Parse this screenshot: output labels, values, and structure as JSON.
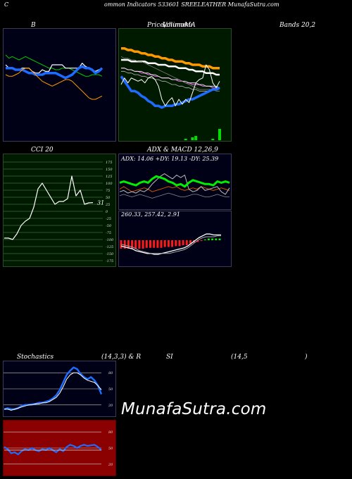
{
  "header": {
    "top_title": "ommon Indicators 533601 SREELEATHER MunafaSutra.com",
    "c_letter": "C"
  },
  "labels": {
    "bbands_title": "B",
    "price_title_1": "Price,",
    "price_title_2": "Volume",
    "price_title_3": "Ichimoku",
    "price_title_4": "MA",
    "bands_right": "Bands 20,2",
    "cci_title": "CCI 20",
    "adx_title": "ADX  & MACD 12,26,9",
    "adx_values": "ADX: 14.06  +DY: 19.13 -DY: 25.39",
    "macd_values": "260.33,  257.42,  2.91",
    "stoch_title_1": "Stochastics",
    "stoch_title_2": "(14,3,3) & R",
    "stoch_title_3": "SI",
    "stoch_title_4": "(14,5",
    "stoch_title_5": ")",
    "watermark": "MunafaSutra.com"
  },
  "colors": {
    "navy": "#000016",
    "green_panel": "#001a00",
    "red_panel": "#8b0000",
    "blue": "#1e6bff",
    "orange": "#ff9900",
    "green_line": "#00cc00",
    "white": "#ffffff"
  },
  "chart_data": [
    {
      "type": "line",
      "panel": "bollinger",
      "series": [
        {
          "values": [
            88,
            86,
            87,
            86,
            85,
            86,
            87,
            86,
            85,
            84,
            83,
            82,
            81,
            80,
            80,
            79,
            79,
            80,
            80,
            80,
            79,
            78,
            77,
            76,
            75,
            75,
            76,
            76,
            76,
            75
          ]
        },
        {
          "values": [
            82,
            80,
            80,
            79,
            79,
            80,
            80,
            80,
            78,
            77,
            77,
            79,
            78,
            78,
            82,
            82,
            82,
            82,
            80,
            80,
            80,
            80,
            80,
            83,
            81,
            80,
            79,
            78,
            79,
            80
          ]
        },
        {
          "values": [
            80,
            80,
            80,
            79,
            79,
            79,
            78,
            77,
            77,
            76,
            76,
            76,
            77,
            77,
            77,
            77,
            76,
            75,
            74,
            75,
            76,
            78,
            80,
            81,
            80,
            80,
            79,
            77,
            78,
            80
          ]
        },
        {
          "values": [
            76,
            75,
            75,
            76,
            77,
            79,
            80,
            80,
            78,
            76,
            74,
            72,
            71,
            70,
            69,
            70,
            71,
            72,
            73,
            73,
            72,
            70,
            68,
            66,
            64,
            62,
            61,
            61,
            62,
            63
          ]
        }
      ]
    },
    {
      "type": "line",
      "panel": "price_volume_ma",
      "series": [
        {
          "values": [
            92,
            92,
            91,
            91,
            90,
            90,
            89,
            89,
            88,
            88,
            87,
            87,
            86,
            86,
            85,
            85,
            84,
            84,
            84,
            83,
            83,
            82,
            82,
            82,
            81,
            81,
            81,
            80,
            80,
            80
          ]
        },
        {
          "values": [
            85,
            85,
            85,
            84,
            84,
            84,
            84,
            84,
            83,
            83,
            83,
            82,
            82,
            82,
            81,
            81,
            81,
            80,
            80,
            80,
            79,
            79,
            78,
            78,
            78,
            77,
            77,
            77,
            76,
            76
          ]
        },
        {
          "values": [
            80,
            80,
            79,
            79,
            78,
            78,
            77,
            77,
            76,
            76,
            75,
            75,
            74,
            74,
            74,
            73,
            73,
            72,
            72,
            71,
            71,
            70,
            70,
            70,
            69,
            69,
            69,
            68,
            68,
            68
          ]
        },
        {
          "values": [
            80,
            80,
            79,
            79,
            78,
            78,
            78,
            77,
            77,
            76,
            76,
            75,
            74,
            74,
            74,
            73,
            73,
            73,
            72,
            72,
            71,
            71,
            71,
            70,
            70,
            69,
            69,
            69,
            69,
            68
          ]
        },
        {
          "values": [
            78,
            78,
            77,
            77,
            76,
            76,
            75,
            75,
            74,
            74,
            73,
            73,
            72,
            72,
            71,
            70,
            70,
            69,
            69,
            68,
            68,
            67,
            67,
            66,
            66,
            66,
            66,
            67,
            67,
            68
          ]
        },
        {
          "values": [
            87,
            86,
            86,
            85,
            85,
            84,
            84,
            83,
            82,
            81,
            80,
            79,
            78,
            77,
            76,
            75,
            74,
            73,
            72,
            71,
            70,
            69,
            68,
            67,
            67,
            67,
            67,
            67,
            66,
            66
          ]
        },
        {
          "values": [
            75,
            72,
            69,
            66,
            66,
            65,
            63,
            62,
            60,
            59,
            57,
            57,
            56,
            57,
            57,
            57,
            58,
            58,
            59,
            60,
            61,
            61,
            62,
            63,
            64,
            65,
            66,
            67,
            67,
            68
          ]
        },
        {
          "values": [
            70,
            74,
            71,
            74,
            73,
            72,
            73,
            71,
            74,
            75,
            73,
            69,
            61,
            57,
            60,
            62,
            57,
            61,
            58,
            61,
            59,
            65,
            71,
            73,
            74,
            82,
            79,
            71,
            68,
            72
          ]
        }
      ],
      "volume": [
        0,
        0,
        0,
        0,
        0,
        0,
        0,
        0,
        0,
        0,
        0,
        0,
        0,
        0,
        0,
        0,
        0,
        0,
        0,
        1,
        0,
        2,
        3,
        0,
        0,
        0,
        0,
        1,
        0,
        8
      ]
    },
    {
      "type": "line",
      "panel": "cci",
      "ylim": [
        -175,
        175
      ],
      "yticks": [
        175,
        150,
        125,
        100,
        75,
        50,
        25,
        0,
        -25,
        -50,
        -75,
        -100,
        -125,
        -150,
        -175
      ],
      "last_label": "31",
      "values": [
        -95,
        -95,
        -100,
        -80,
        -50,
        -35,
        -25,
        15,
        80,
        100,
        75,
        50,
        25,
        35,
        35,
        45,
        125,
        55,
        75,
        25,
        30,
        31
      ]
    },
    {
      "type": "line",
      "panel": "adx",
      "series": [
        {
          "values": [
            15,
            16,
            15,
            14,
            15,
            16,
            15,
            14,
            13,
            14,
            15,
            16,
            17,
            16,
            15,
            14,
            14,
            15,
            16,
            16,
            15,
            14,
            14,
            15,
            16,
            15,
            14,
            14
          ]
        },
        {
          "values": [
            20,
            22,
            20,
            18,
            19,
            20,
            21,
            20,
            18,
            19,
            20,
            21,
            22,
            21,
            22,
            20,
            19,
            20,
            21,
            20,
            22,
            21,
            20,
            19,
            20,
            21,
            20,
            19
          ]
        },
        {
          "values": [
            18,
            19,
            17,
            18,
            17,
            19,
            18,
            20,
            24,
            27,
            30,
            32,
            30,
            28,
            31,
            29,
            31,
            20,
            18,
            19,
            22,
            19,
            20,
            21,
            22,
            18,
            16,
            21
          ]
        },
        {
          "values": [
            25,
            26,
            25,
            24,
            23,
            25,
            26,
            25,
            28,
            30,
            29,
            28,
            26,
            25,
            23,
            24,
            22,
            25,
            27,
            26,
            25,
            24,
            24,
            23,
            26,
            25,
            26,
            25
          ]
        }
      ]
    },
    {
      "type": "line",
      "panel": "macd",
      "values_label": "260.33,  257.42,  2.91",
      "series": [
        {
          "values": [
            80,
            79,
            78,
            77,
            75,
            74,
            73,
            72,
            72,
            71,
            71,
            72,
            73,
            74,
            75,
            76,
            77,
            78,
            80,
            83,
            86,
            89,
            91,
            93,
            93,
            92,
            92,
            92
          ]
        },
        {
          "values": [
            82,
            81,
            80,
            79,
            77,
            75,
            74,
            73,
            72,
            72,
            72,
            72,
            72,
            72,
            73,
            74,
            75,
            76,
            78,
            81,
            84,
            87,
            89,
            90,
            90,
            90,
            91,
            91
          ]
        }
      ],
      "histogram": [
        -10,
        -10,
        -10,
        -10,
        -10,
        -10,
        -10,
        -9,
        -9,
        -9,
        -9,
        -9,
        -8,
        -8,
        -8,
        -7,
        -7,
        -6,
        -6,
        -4,
        -3,
        -2,
        -1,
        1,
        2,
        2,
        2,
        2
      ]
    },
    {
      "type": "line",
      "panel": "stochastics",
      "yticks": [
        80,
        50,
        20
      ],
      "series": [
        {
          "values": [
            12,
            14,
            12,
            12,
            14,
            18,
            20,
            20,
            21,
            22,
            24,
            24,
            26,
            28,
            32,
            38,
            48,
            62,
            76,
            84,
            90,
            87,
            78,
            72,
            68,
            72,
            66,
            56,
            40
          ]
        },
        {
          "values": [
            12,
            12,
            10,
            12,
            14,
            16,
            18,
            20,
            20,
            22,
            22,
            24,
            24,
            26,
            30,
            34,
            42,
            54,
            68,
            76,
            80,
            80,
            76,
            70,
            66,
            64,
            62,
            56,
            48
          ]
        }
      ]
    },
    {
      "type": "line",
      "panel": "rsi",
      "yticks": [
        80,
        50,
        20
      ],
      "series": [
        {
          "values": [
            52,
            48,
            40,
            42,
            38,
            44,
            48,
            46,
            50,
            46,
            44,
            48,
            46,
            50,
            46,
            42,
            48,
            44,
            52,
            56,
            54,
            50,
            54,
            56,
            54,
            55,
            56,
            52,
            46
          ]
        },
        {
          "values": [
            46,
            46,
            46,
            46,
            46,
            46,
            46,
            46,
            46,
            46,
            46,
            46,
            46,
            46,
            46,
            46,
            46,
            46,
            46,
            46,
            46,
            46,
            46,
            46,
            46,
            46,
            46,
            46,
            46
          ]
        }
      ]
    }
  ]
}
